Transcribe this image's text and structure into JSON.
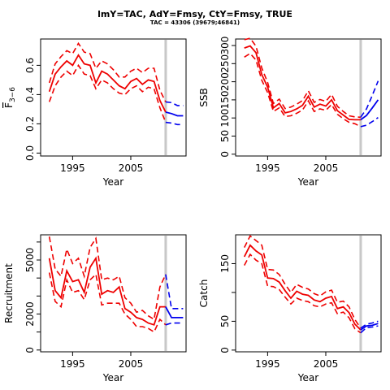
{
  "header": {
    "title": "lmY=TAC, AdY=Fmsy, CtY=Fmsy, TRUE",
    "subtitle": "TAC = 43306 (39679;46841)"
  },
  "colors": {
    "historical": "#ee0000",
    "projection": "#0000ee",
    "divider": "#c8c8c8"
  },
  "divider_year": 2011,
  "chart_data": [
    {
      "type": "line",
      "ylabel": "F3-6 (mean, overbar)",
      "ylabel_main": "F",
      "ylabel_sub": "3−6",
      "xlabel": "Year",
      "xlim": [
        1989.5,
        2014.5
      ],
      "ylim": [
        -0.02,
        0.78
      ],
      "xticks": [
        1995,
        2005
      ],
      "yticks": [
        0.0,
        0.2,
        0.4,
        0.6
      ],
      "ytick_labels": [
        "0.0",
        "0.2",
        "0.4",
        "0.6"
      ],
      "history": {
        "x": [
          1991,
          1992,
          1993,
          1994,
          1995,
          1996,
          1997,
          1998,
          1999,
          2000,
          2001,
          2002,
          2003,
          2004,
          2005,
          2006,
          2007,
          2008,
          2009,
          2010,
          2011
        ],
        "mid": [
          0.42,
          0.54,
          0.59,
          0.63,
          0.6,
          0.67,
          0.61,
          0.6,
          0.48,
          0.56,
          0.54,
          0.5,
          0.46,
          0.44,
          0.49,
          0.51,
          0.47,
          0.5,
          0.49,
          0.36,
          0.28
        ],
        "upper": [
          0.48,
          0.61,
          0.66,
          0.7,
          0.68,
          0.75,
          0.69,
          0.68,
          0.58,
          0.63,
          0.61,
          0.57,
          0.52,
          0.52,
          0.56,
          0.58,
          0.55,
          0.58,
          0.58,
          0.43,
          0.35
        ],
        "lower": [
          0.35,
          0.46,
          0.52,
          0.56,
          0.53,
          0.6,
          0.54,
          0.53,
          0.44,
          0.5,
          0.48,
          0.44,
          0.41,
          0.4,
          0.44,
          0.46,
          0.42,
          0.45,
          0.44,
          0.31,
          0.21
        ]
      },
      "projection": {
        "x": [
          2011,
          2012,
          2013,
          2014
        ],
        "mid": [
          0.28,
          0.27,
          0.255,
          0.255
        ],
        "upper": [
          0.35,
          0.345,
          0.325,
          0.325
        ],
        "lower": [
          0.21,
          0.205,
          0.195,
          0.195
        ]
      }
    },
    {
      "type": "line",
      "ylabel": "SSB",
      "xlabel": "Year",
      "xlim": [
        1989.5,
        2014.5
      ],
      "ylim": [
        -5,
        318
      ],
      "xticks": [
        1995,
        2005
      ],
      "yticks": [
        0,
        50,
        100,
        150,
        200,
        250,
        300
      ],
      "ytick_labels": [
        "0",
        "50",
        "100",
        "150",
        "200",
        "250",
        "300"
      ],
      "history": {
        "x": [
          1991,
          1992,
          1993,
          1994,
          1995,
          1996,
          1997,
          1998,
          1999,
          2000,
          2001,
          2002,
          2003,
          2004,
          2005,
          2006,
          2007,
          2008,
          2009,
          2010,
          2011
        ],
        "mid": [
          293,
          299,
          280,
          220,
          185,
          128,
          140,
          114,
          118,
          125,
          135,
          160,
          130,
          138,
          133,
          150,
          120,
          108,
          96,
          95,
          95
        ],
        "upper": [
          316,
          320,
          298,
          238,
          198,
          140,
          152,
          126,
          130,
          138,
          148,
          175,
          143,
          151,
          146,
          165,
          132,
          118,
          106,
          103,
          102
        ],
        "lower": [
          268,
          278,
          260,
          204,
          170,
          118,
          128,
          104,
          106,
          113,
          122,
          147,
          118,
          125,
          121,
          137,
          110,
          98,
          88,
          84,
          76
        ]
      },
      "projection": {
        "x": [
          2011,
          2012,
          2013,
          2014
        ],
        "mid": [
          95,
          107,
          128,
          150
        ],
        "upper": [
          102,
          125,
          163,
          202
        ],
        "lower": [
          76,
          80,
          90,
          101
        ]
      }
    },
    {
      "type": "line",
      "ylabel": "Recruitment",
      "xlabel": "Year",
      "xlim": [
        1989.5,
        2014.5
      ],
      "ylim": [
        -100,
        6400
      ],
      "xticks": [
        1995,
        2005
      ],
      "yticks": [
        0,
        1000,
        2000,
        3000,
        4000,
        5000,
        6000
      ],
      "ytick_labels": [
        "0",
        "",
        "2000",
        "",
        "",
        "5000",
        ""
      ],
      "history": {
        "x": [
          1991,
          1992,
          1993,
          1994,
          1995,
          1996,
          1997,
          1998,
          1999,
          2000,
          2001,
          2002,
          2003,
          2004,
          2005,
          2006,
          2007,
          2008,
          2009,
          2010,
          2011
        ],
        "mid": [
          5100,
          3300,
          2900,
          4400,
          3800,
          3900,
          3200,
          4600,
          5100,
          3100,
          3300,
          3200,
          3500,
          2300,
          2100,
          1800,
          1700,
          1500,
          1400,
          2400,
          2400
        ],
        "upper": [
          6300,
          4500,
          4100,
          5600,
          4800,
          5100,
          4100,
          5700,
          6200,
          3900,
          4000,
          3900,
          4100,
          2900,
          2600,
          2100,
          2200,
          1900,
          1700,
          3500,
          4200
        ],
        "lower": [
          4300,
          2700,
          2400,
          3900,
          3200,
          3300,
          2800,
          3900,
          4200,
          2500,
          2600,
          2600,
          2600,
          2000,
          1700,
          1300,
          1300,
          1200,
          1000,
          1700,
          1400
        ]
      },
      "projection": {
        "x": [
          2011,
          2012,
          2013,
          2014
        ],
        "mid": [
          2400,
          1800,
          1800,
          1800
        ],
        "upper": [
          4200,
          2300,
          2300,
          2300
        ],
        "lower": [
          1400,
          1500,
          1500,
          1500
        ]
      }
    },
    {
      "type": "line",
      "ylabel": "Catch",
      "xlabel": "Year",
      "xlim": [
        1989.5,
        2014.5
      ],
      "ylim": [
        -3,
        200
      ],
      "xticks": [
        1995,
        2005
      ],
      "yticks": [
        0,
        50,
        100,
        150
      ],
      "ytick_labels": [
        "0",
        "50",
        "",
        "150"
      ],
      "history": {
        "x": [
          1991,
          1992,
          1993,
          1994,
          1995,
          1996,
          1997,
          1998,
          1999,
          2000,
          2001,
          2002,
          2003,
          2004,
          2005,
          2006,
          2007,
          2008,
          2009,
          2010,
          2011
        ],
        "mid": [
          162,
          182,
          172,
          165,
          125,
          124,
          118,
          103,
          90,
          102,
          97,
          95,
          87,
          84,
          90,
          93,
          72,
          75,
          65,
          45,
          35
        ],
        "upper": [
          178,
          198,
          190,
          182,
          140,
          139,
          131,
          114,
          100,
          114,
          109,
          106,
          98,
          94,
          101,
          104,
          83,
          85,
          75,
          53,
          38
        ],
        "lower": [
          147,
          166,
          156,
          150,
          111,
          110,
          105,
          92,
          80,
          90,
          86,
          84,
          77,
          75,
          80,
          82,
          63,
          66,
          56,
          37,
          30
        ]
      },
      "projection": {
        "x": [
          2011,
          2012,
          2013,
          2014
        ],
        "mid": [
          35,
          42,
          43,
          46
        ],
        "upper": [
          38,
          45,
          47,
          50
        ],
        "lower": [
          30,
          39,
          40,
          42
        ]
      }
    }
  ]
}
